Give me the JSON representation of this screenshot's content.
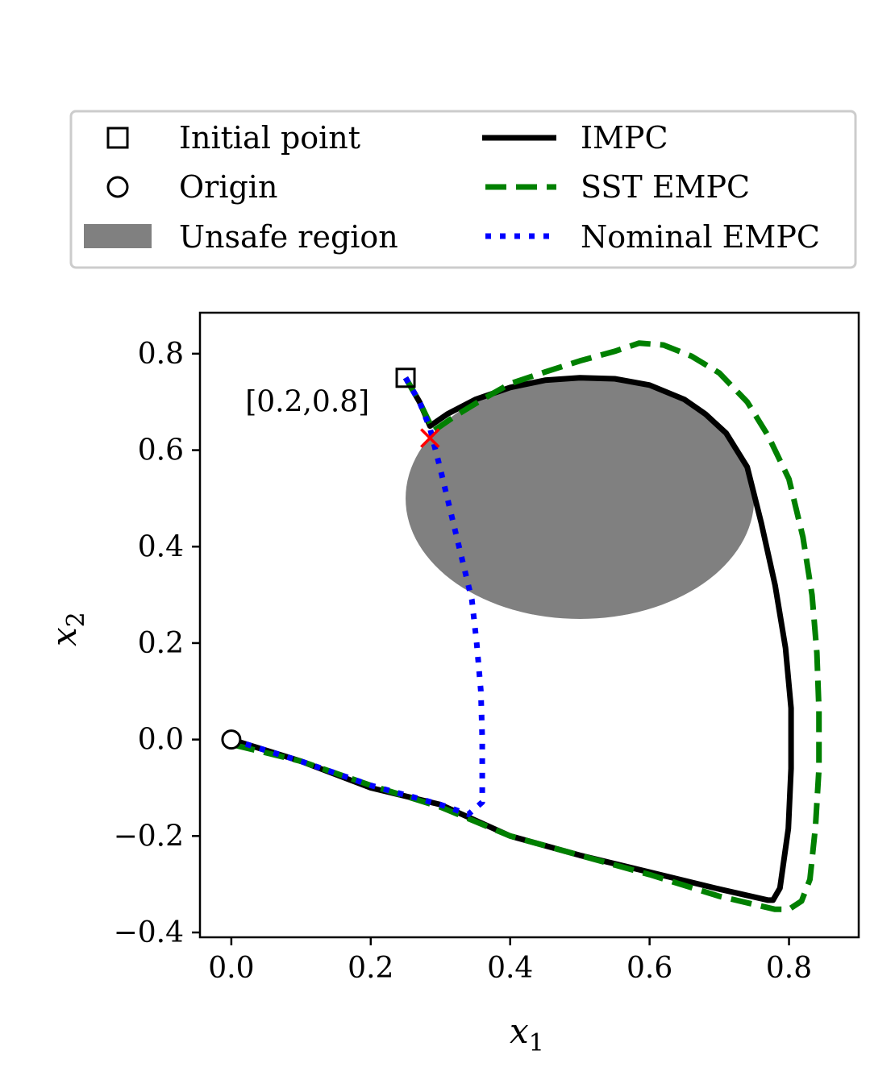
{
  "chart_data": {
    "type": "line",
    "title": "",
    "xlabel": "x",
    "xlabel_sub": "1",
    "ylabel": "x",
    "ylabel_sub": "2",
    "xlim": [
      -0.045,
      0.9
    ],
    "ylim": [
      -0.41,
      0.885
    ],
    "x_ticks": [
      0.0,
      0.2,
      0.4,
      0.6,
      0.8
    ],
    "x_tick_labels": [
      "0.0",
      "0.2",
      "0.4",
      "0.6",
      "0.8"
    ],
    "y_ticks": [
      -0.4,
      -0.2,
      0.0,
      0.2,
      0.4,
      0.6,
      0.8
    ],
    "y_tick_labels": [
      "−0.4",
      "−0.2",
      "0.0",
      "0.2",
      "0.4",
      "0.6",
      "0.8"
    ],
    "grid": false,
    "legend_position": "top, above plot, two columns",
    "legend": {
      "initial_point": "Initial point",
      "origin": "Origin",
      "unsafe_region": "Unsafe region",
      "impc": "IMPC",
      "sst_empc": "SST EMPC",
      "nominal_empc": "Nominal EMPC"
    },
    "annotation": {
      "text": "[0.2,0.8]",
      "x": 0.02,
      "y": 0.7
    },
    "initial_point": {
      "x": 0.25,
      "y": 0.75
    },
    "origin": {
      "x": 0.0,
      "y": 0.0
    },
    "violation_point": {
      "x": 0.285,
      "y": 0.625
    },
    "unsafe_region": {
      "cx": 0.5,
      "cy": 0.5,
      "rx": 0.25,
      "ry": 0.25
    },
    "colors": {
      "impc": "#000000",
      "sst_empc": "#008000",
      "nominal_empc": "#0000ff",
      "unsafe_region": "#808080",
      "violation_marker": "#ff0000"
    },
    "series": [
      {
        "name": "IMPC",
        "points": [
          [
            0.25,
            0.75
          ],
          [
            0.27,
            0.7
          ],
          [
            0.285,
            0.65
          ],
          [
            0.31,
            0.675
          ],
          [
            0.35,
            0.705
          ],
          [
            0.4,
            0.73
          ],
          [
            0.45,
            0.745
          ],
          [
            0.5,
            0.75
          ],
          [
            0.55,
            0.748
          ],
          [
            0.6,
            0.735
          ],
          [
            0.65,
            0.705
          ],
          [
            0.68,
            0.675
          ],
          [
            0.71,
            0.635
          ],
          [
            0.74,
            0.565
          ],
          [
            0.76,
            0.45
          ],
          [
            0.78,
            0.32
          ],
          [
            0.795,
            0.19
          ],
          [
            0.803,
            0.065
          ],
          [
            0.803,
            -0.06
          ],
          [
            0.799,
            -0.185
          ],
          [
            0.787,
            -0.308
          ],
          [
            0.777,
            -0.333
          ],
          [
            0.77,
            -0.333
          ],
          [
            0.7,
            -0.31
          ],
          [
            0.6,
            -0.275
          ],
          [
            0.5,
            -0.24
          ],
          [
            0.4,
            -0.2
          ],
          [
            0.3,
            -0.135
          ],
          [
            0.2,
            -0.1
          ],
          [
            0.1,
            -0.045
          ],
          [
            0.0,
            0.0
          ]
        ]
      },
      {
        "name": "SST EMPC",
        "points": [
          [
            0.25,
            0.75
          ],
          [
            0.27,
            0.7
          ],
          [
            0.29,
            0.64
          ],
          [
            0.32,
            0.67
          ],
          [
            0.36,
            0.705
          ],
          [
            0.4,
            0.738
          ],
          [
            0.45,
            0.762
          ],
          [
            0.5,
            0.785
          ],
          [
            0.55,
            0.805
          ],
          [
            0.585,
            0.822
          ],
          [
            0.62,
            0.818
          ],
          [
            0.66,
            0.795
          ],
          [
            0.7,
            0.76
          ],
          [
            0.74,
            0.7
          ],
          [
            0.77,
            0.63
          ],
          [
            0.8,
            0.54
          ],
          [
            0.82,
            0.42
          ],
          [
            0.833,
            0.3
          ],
          [
            0.84,
            0.18
          ],
          [
            0.843,
            0.06
          ],
          [
            0.843,
            -0.06
          ],
          [
            0.838,
            -0.18
          ],
          [
            0.83,
            -0.29
          ],
          [
            0.818,
            -0.335
          ],
          [
            0.8,
            -0.352
          ],
          [
            0.78,
            -0.352
          ],
          [
            0.7,
            -0.325
          ],
          [
            0.6,
            -0.28
          ],
          [
            0.5,
            -0.24
          ],
          [
            0.4,
            -0.2
          ],
          [
            0.3,
            -0.14
          ],
          [
            0.2,
            -0.095
          ],
          [
            0.1,
            -0.045
          ],
          [
            0.0,
            -0.01
          ]
        ]
      },
      {
        "name": "Nominal EMPC",
        "points": [
          [
            0.25,
            0.75
          ],
          [
            0.27,
            0.7
          ],
          [
            0.285,
            0.645
          ],
          [
            0.3,
            0.56
          ],
          [
            0.315,
            0.47
          ],
          [
            0.33,
            0.38
          ],
          [
            0.345,
            0.29
          ],
          [
            0.352,
            0.2
          ],
          [
            0.358,
            0.1
          ],
          [
            0.36,
            0.0
          ],
          [
            0.36,
            -0.13
          ],
          [
            0.34,
            -0.155
          ],
          [
            0.3,
            -0.135
          ],
          [
            0.2,
            -0.095
          ],
          [
            0.1,
            -0.045
          ],
          [
            0.0,
            0.0
          ]
        ]
      }
    ]
  }
}
